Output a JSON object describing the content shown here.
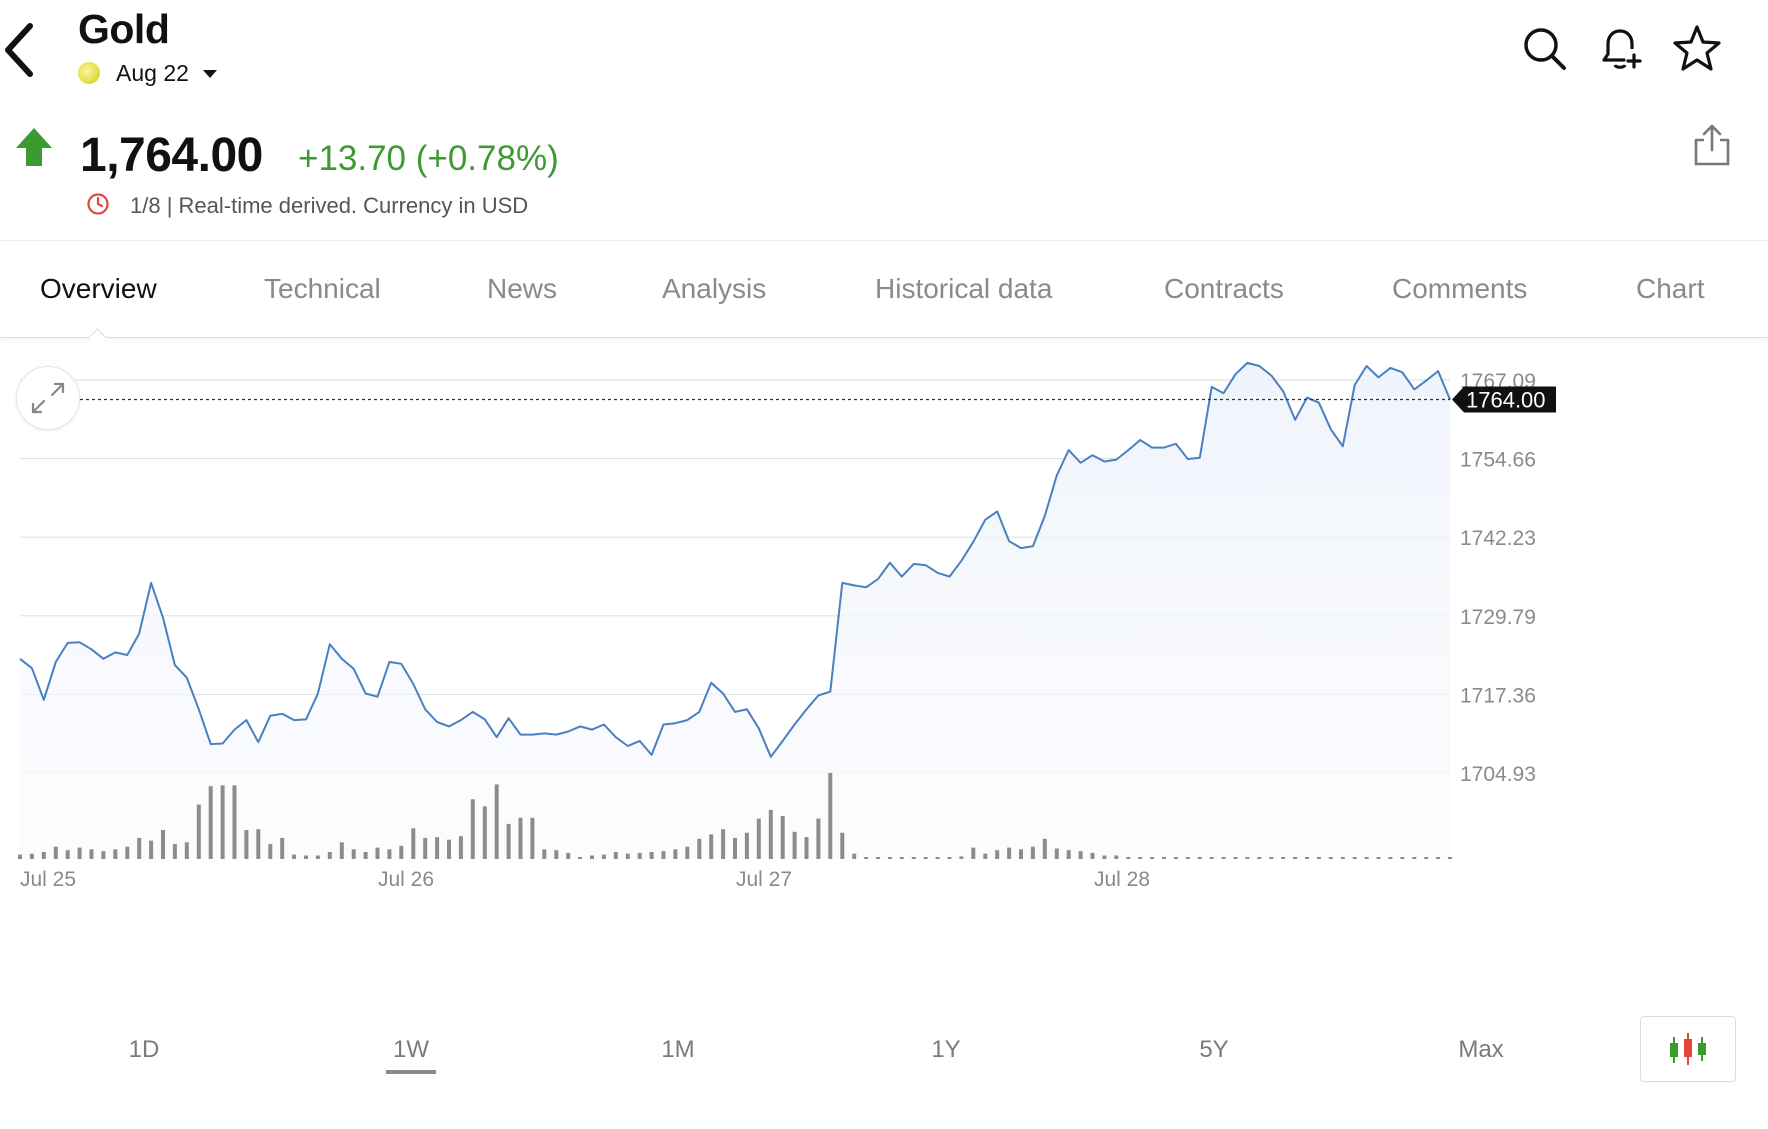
{
  "header": {
    "title": "Gold",
    "contract": "Aug 22",
    "icons": [
      "back-icon",
      "search-icon",
      "bell-plus-icon",
      "star-icon"
    ]
  },
  "quote": {
    "price": "1,764.00",
    "change": "+13.70 (+0.78%)",
    "direction": "up",
    "meta": "1/8 | Real-time derived. Currency in USD",
    "up_color": "#3c9a32"
  },
  "tabs": [
    {
      "label": "Overview",
      "active": true
    },
    {
      "label": "Technical"
    },
    {
      "label": "News"
    },
    {
      "label": "Analysis"
    },
    {
      "label": "Historical data"
    },
    {
      "label": "Contracts"
    },
    {
      "label": "Comments"
    },
    {
      "label": "Chart"
    }
  ],
  "ranges": [
    {
      "label": "1D"
    },
    {
      "label": "1W",
      "active": true
    },
    {
      "label": "1M"
    },
    {
      "label": "1Y"
    },
    {
      "label": "5Y"
    },
    {
      "label": "Max"
    }
  ],
  "chart_data": {
    "type": "area",
    "title": "",
    "xlabel": "",
    "ylabel": "",
    "x_tick_labels": [
      "Jul 25",
      "Jul 26",
      "Jul 27",
      "Jul 28"
    ],
    "y_tick_labels": [
      "1767.09",
      "1754.66",
      "1742.23",
      "1729.79",
      "1717.36",
      "1704.93"
    ],
    "ylim": [
      1704.93,
      1767.09
    ],
    "current_value_label": "1764.00",
    "current_value": 1764.0,
    "line_color": "#4a7fc1",
    "series": [
      {
        "values": [
          1723.0,
          1721.5,
          1716.5,
          1722.5,
          1725.5,
          1725.6,
          1724.5,
          1723.0,
          1724.0,
          1723.6,
          1727.0,
          1735.0,
          1729.5,
          1722.0,
          1720.0,
          1715.0,
          1709.5,
          1709.6,
          1711.8,
          1713.3,
          1709.8,
          1714.0,
          1714.3,
          1713.3,
          1713.4,
          1717.5,
          1725.3,
          1723.0,
          1721.4,
          1717.5,
          1717.0,
          1722.5,
          1722.2,
          1719.0,
          1715.0,
          1713.0,
          1712.3,
          1713.3,
          1714.6,
          1713.4,
          1710.6,
          1713.6,
          1711.0,
          1711.0,
          1711.2,
          1711.0,
          1711.5,
          1712.3,
          1711.8,
          1712.6,
          1710.6,
          1709.2,
          1710.0,
          1707.8,
          1712.6,
          1712.8,
          1713.3,
          1714.6,
          1719.2,
          1717.5,
          1714.6,
          1715.0,
          1712.0,
          1707.5,
          1710.0,
          1712.6,
          1715.0,
          1717.2,
          1717.8,
          1735.0,
          1734.6,
          1734.3,
          1735.6,
          1738.2,
          1736.0,
          1738.0,
          1737.8,
          1736.6,
          1736.0,
          1738.5,
          1741.5,
          1745.0,
          1746.3,
          1741.6,
          1740.5,
          1740.8,
          1745.6,
          1752.0,
          1756.0,
          1754.0,
          1755.2,
          1754.2,
          1754.5,
          1756.0,
          1757.6,
          1756.4,
          1756.4,
          1757.0,
          1754.6,
          1754.8,
          1766.0,
          1765.0,
          1768.0,
          1769.8,
          1769.3,
          1767.8,
          1765.3,
          1760.8,
          1764.3,
          1763.5,
          1759.3,
          1756.6,
          1766.3,
          1769.3,
          1767.5,
          1769.0,
          1768.3,
          1765.6,
          1767.0,
          1768.5,
          1764.0
        ],
        "volume": [
          0.5,
          0.6,
          0.8,
          1.4,
          1.0,
          1.3,
          1.1,
          0.9,
          1.1,
          1.4,
          2.4,
          2.1,
          3.3,
          1.7,
          1.9,
          6.2,
          8.3,
          8.4,
          8.4,
          3.3,
          3.4,
          1.7,
          2.4,
          0.5,
          0.4,
          0.4,
          0.8,
          1.9,
          1.1,
          0.8,
          1.3,
          1.1,
          1.5,
          3.5,
          2.4,
          2.5,
          2.2,
          2.6,
          6.8,
          6.0,
          8.5,
          4.0,
          4.7,
          4.7,
          1.1,
          1.0,
          0.7,
          0.0,
          0.4,
          0.5,
          0.8,
          0.6,
          0.7,
          0.8,
          0.9,
          1.1,
          1.4,
          2.3,
          2.8,
          3.4,
          2.4,
          3.0,
          4.6,
          5.6,
          4.9,
          3.1,
          2.5,
          4.6,
          9.8,
          3.0,
          0.6,
          0.2,
          0.2,
          0.2,
          0.2,
          0.2,
          0.0,
          0.0,
          0.1,
          0.3,
          1.3,
          0.6,
          1.0,
          1.3,
          1.1,
          1.4,
          2.3,
          1.2,
          1.0,
          0.9,
          0.7,
          0.4,
          0.4,
          0.0,
          0.0,
          0.0,
          0.0,
          0.0,
          0.0,
          0.0,
          0.0,
          0.0,
          0.0,
          0.0,
          0.0,
          0.0,
          0.0,
          0.0,
          0.0,
          0.0,
          0.0,
          0.0,
          0.0,
          0.0,
          0.0,
          0.0,
          0.0,
          0.0,
          0.0,
          0.0,
          0.0
        ]
      }
    ],
    "grid": true,
    "crosshair_dashed": true
  }
}
